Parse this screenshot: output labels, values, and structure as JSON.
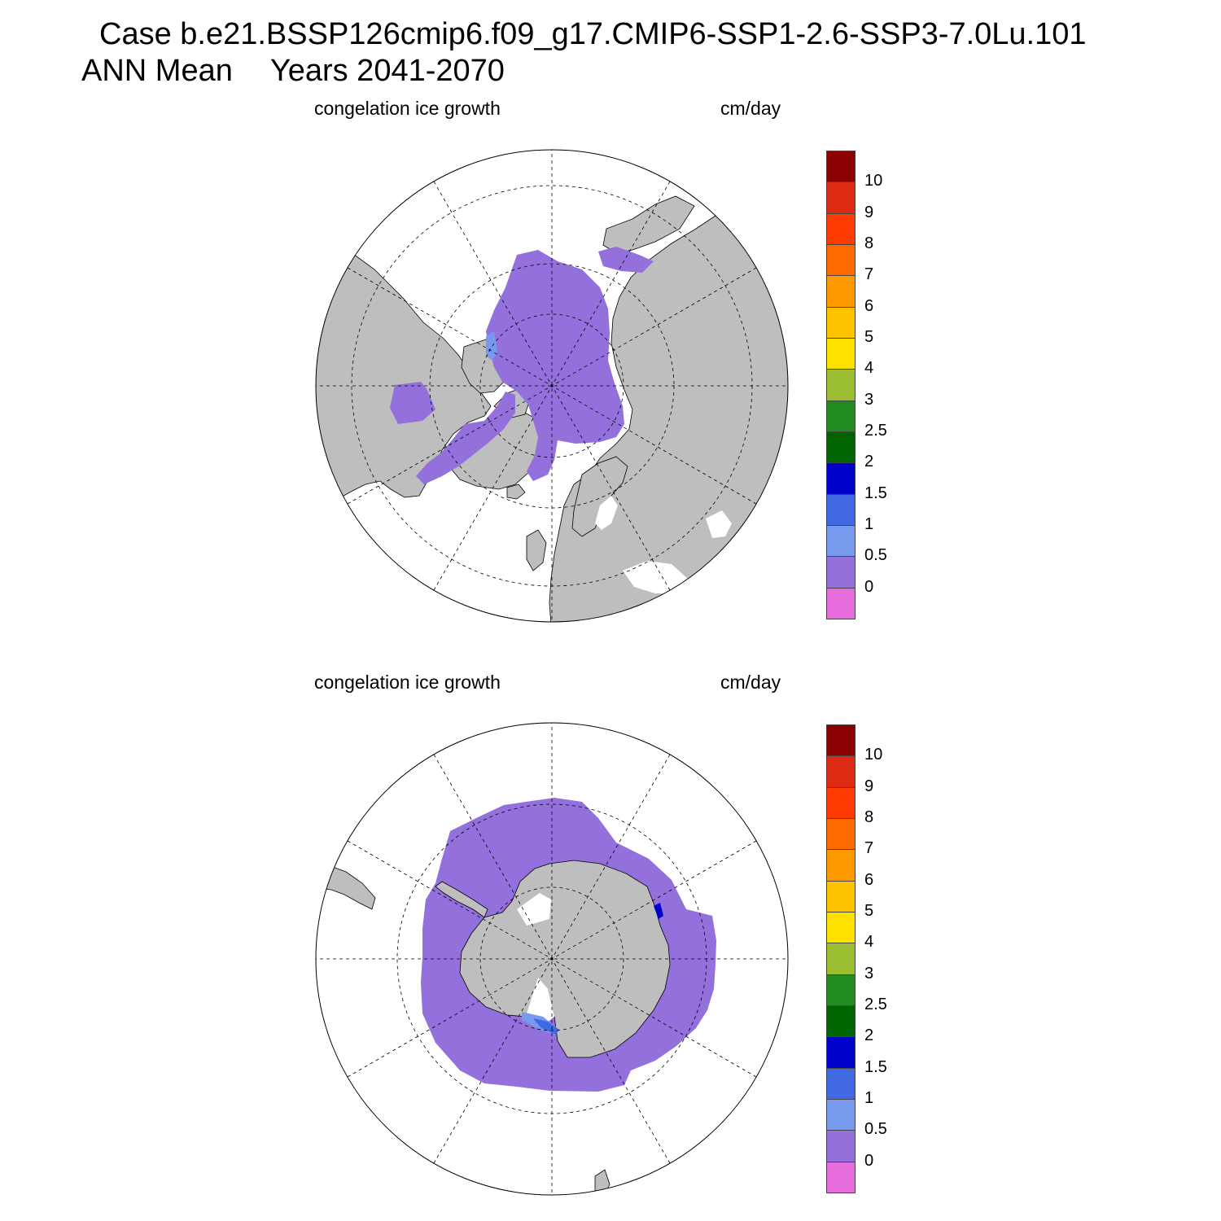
{
  "header": {
    "title_case": "Case b.e21.BSSP126cmip6.f09_g17.CMIP6-SSP1-2.6-SSP3-7.0Lu.101",
    "title_period": "ANN Mean",
    "title_years": "Years 2041-2070"
  },
  "colors": {
    "ice_growth_0_to_0_5": "#9370DB",
    "ice_growth_0_5_to_1": "#7799EE",
    "ice_growth_1_to_1_5": "#4169E1",
    "ice_growth_1_5_to_2": "#0000CD",
    "land": "#BEBEBE",
    "ocean_no_data": "#FFFFFF"
  },
  "panels": [
    {
      "hemisphere": "north",
      "variable": "congelation ice growth",
      "units": "cm/day",
      "colorbar": {
        "levels": [
          "10",
          "9",
          "8",
          "7",
          "6",
          "5",
          "4",
          "3",
          "2.5",
          "2",
          "1.5",
          "1",
          "0.5",
          "0"
        ],
        "colors": [
          "#8B0000",
          "#DD2A12",
          "#FF3A00",
          "#FF6A00",
          "#FF9900",
          "#FFC200",
          "#FFE100",
          "#9BBE32",
          "#228B22",
          "#006400",
          "#0000CD",
          "#4169E1",
          "#7799EE",
          "#9370DB",
          "#E76CDB"
        ]
      }
    },
    {
      "hemisphere": "south",
      "variable": "congelation ice growth",
      "units": "cm/day",
      "colorbar": {
        "levels": [
          "10",
          "9",
          "8",
          "7",
          "6",
          "5",
          "4",
          "3",
          "2.5",
          "2",
          "1.5",
          "1",
          "0.5",
          "0"
        ],
        "colors": [
          "#8B0000",
          "#DD2A12",
          "#FF3A00",
          "#FF6A00",
          "#FF9900",
          "#FFC200",
          "#FFE100",
          "#9BBE32",
          "#228B22",
          "#006400",
          "#0000CD",
          "#4169E1",
          "#7799EE",
          "#9370DB",
          "#E76CDB"
        ]
      }
    }
  ]
}
